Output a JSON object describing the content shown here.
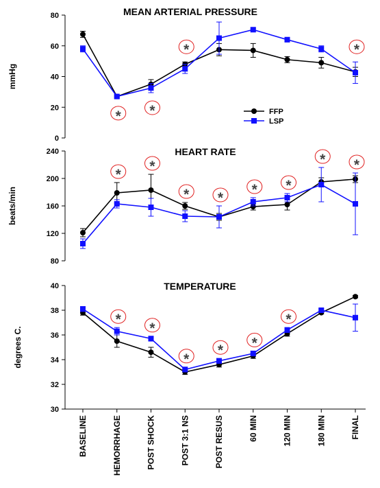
{
  "categories": [
    "BASELINE",
    "HEMORRHAGE",
    "POST SHOCK",
    "POST 3:1 NS",
    "POST RESUS",
    "60 MIN",
    "120 MIN",
    "180 MIN",
    "FINAL"
  ],
  "significance_symbol": "*",
  "colors": {
    "FFP": "#000000",
    "LSP": "#1010ff",
    "significance_circle": "#e02020"
  },
  "legend": [
    "FFP",
    "LSP"
  ],
  "chart_data": [
    {
      "type": "line",
      "title": "MEAN ARTERIAL PRESSURE",
      "ylabel": "mmHg",
      "ylim": [
        0,
        80
      ],
      "yticks": [
        0,
        20,
        40,
        60,
        80
      ],
      "categories": [
        "BASELINE",
        "HEMORRHAGE",
        "POST SHOCK",
        "POST 3:1 NS",
        "POST RESUS",
        "60 MIN",
        "120 MIN",
        "180 MIN",
        "FINAL"
      ],
      "series": [
        {
          "name": "FFP",
          "values": [
            67.5,
            27,
            35,
            48,
            57.5,
            57,
            51,
            49,
            43
          ],
          "error": [
            2,
            1,
            3,
            1.5,
            4,
            4.5,
            2,
            3.5,
            3
          ]
        },
        {
          "name": "LSP",
          "values": [
            58,
            27,
            32.5,
            45,
            65,
            70.5,
            64,
            58,
            42.5
          ],
          "error": [
            2,
            1,
            3,
            3,
            10.5,
            1,
            1.5,
            2,
            7
          ]
        }
      ],
      "significant": [
        1,
        2,
        3,
        8
      ],
      "grid": false,
      "legend_position": "right"
    },
    {
      "type": "line",
      "title": "HEART RATE",
      "ylabel": "beats/min",
      "ylim": [
        80,
        240
      ],
      "yticks": [
        80,
        120,
        160,
        200,
        240
      ],
      "categories": [
        "BASELINE",
        "HEMORRHAGE",
        "POST SHOCK",
        "POST 3:1 NS",
        "POST RESUS",
        "60 MIN",
        "120 MIN",
        "180 MIN",
        "FINAL"
      ],
      "series": [
        {
          "name": "FFP",
          "values": [
            121,
            179,
            183,
            160,
            144,
            159,
            162,
            195,
            199
          ],
          "error": [
            6,
            15,
            23,
            5,
            5,
            5,
            8,
            6,
            5
          ]
        },
        {
          "name": "LSP",
          "values": [
            105,
            163,
            158,
            145,
            144,
            166,
            172,
            191,
            163
          ],
          "error": [
            7,
            6,
            13,
            8,
            16,
            6,
            6,
            25,
            45
          ]
        }
      ],
      "significant": [
        1,
        2,
        3,
        4,
        5,
        6,
        7,
        8
      ],
      "grid": false
    },
    {
      "type": "line",
      "title": "TEMPERATURE",
      "ylabel": "degrees C.",
      "ylim": [
        30,
        40
      ],
      "yticks": [
        30,
        32,
        34,
        36,
        38,
        40
      ],
      "categories": [
        "BASELINE",
        "HEMORRHAGE",
        "POST SHOCK",
        "POST 3:1 NS",
        "POST RESUS",
        "60 MIN",
        "120 MIN",
        "180 MIN",
        "FINAL"
      ],
      "series": [
        {
          "name": "FFP",
          "values": [
            37.8,
            35.5,
            34.6,
            33,
            33.6,
            34.3,
            36.1,
            37.8,
            39.1
          ],
          "error": [
            0.2,
            0.5,
            0.4,
            0.2,
            0.2,
            0.2,
            0.2,
            0.1,
            0.1
          ]
        },
        {
          "name": "LSP",
          "values": [
            38.1,
            36.3,
            35.7,
            33.2,
            33.9,
            34.5,
            36.4,
            38,
            37.4
          ],
          "error": [
            0.2,
            0.3,
            0.2,
            0.2,
            0.2,
            0.2,
            0.2,
            0.1,
            1.1
          ]
        }
      ],
      "significant": [
        1,
        2,
        3,
        4,
        5,
        6
      ],
      "grid": false
    }
  ]
}
